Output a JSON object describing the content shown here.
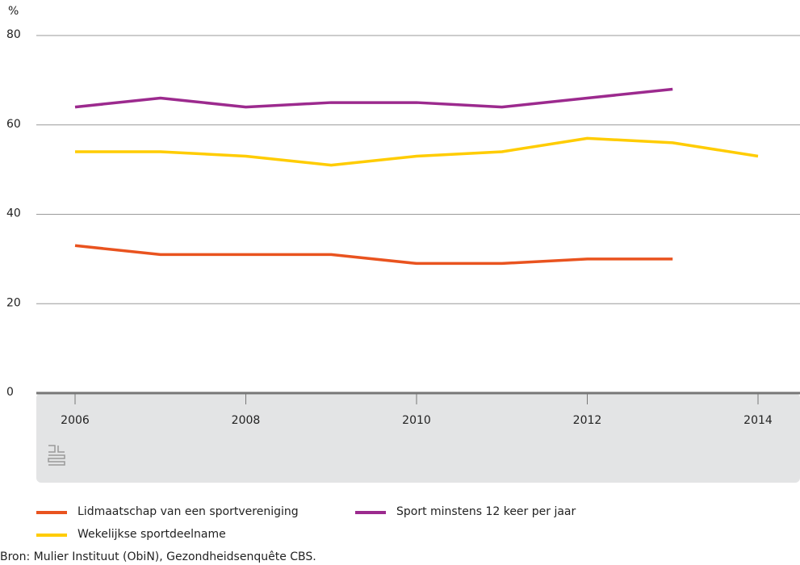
{
  "chart_data": {
    "type": "line",
    "y_unit": "%",
    "x": [
      2006,
      2007,
      2008,
      2009,
      2010,
      2011,
      2012,
      2013,
      2014
    ],
    "series": [
      {
        "name": "Lidmaatschap van een sportvereniging",
        "color": "#e9531f",
        "values": [
          33,
          31,
          31,
          31,
          29,
          29,
          30,
          30,
          null
        ]
      },
      {
        "name": "Sport minstens 12 keer per jaar",
        "color": "#9c2a8e",
        "values": [
          64,
          66,
          64,
          65,
          65,
          64,
          66,
          68,
          null
        ]
      },
      {
        "name": "Wekelijkse sportdeelname",
        "color": "#ffcc00",
        "values": [
          54,
          54,
          53,
          51,
          53,
          54,
          57,
          56,
          53
        ]
      }
    ],
    "xlim": [
      2006,
      2014
    ],
    "xticks": [
      2006,
      2008,
      2010,
      2012,
      2014
    ],
    "ylim": [
      0,
      80
    ],
    "yticks": [
      0,
      20,
      40,
      60,
      80
    ],
    "grid": true,
    "source": "Bron: Mulier Instituut (ObiN), Gezondheidsenquête CBS."
  }
}
